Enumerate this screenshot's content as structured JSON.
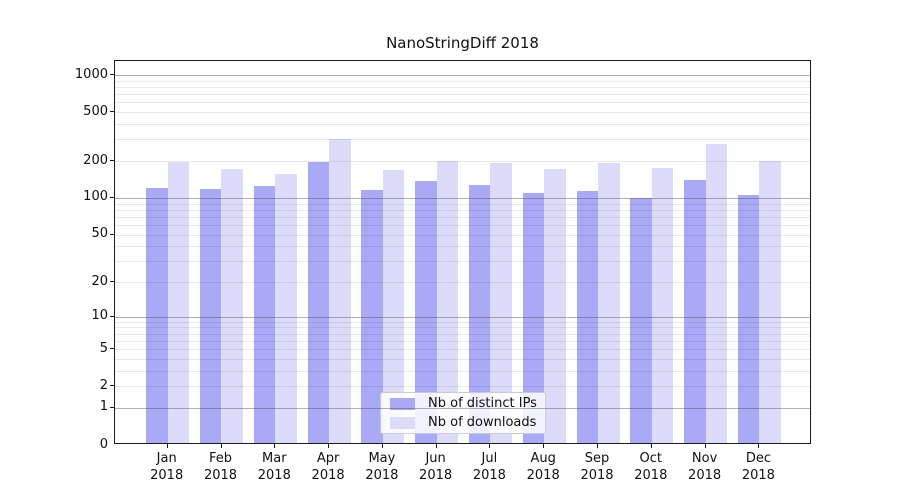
{
  "chart_data": {
    "type": "bar",
    "title": "NanoStringDiff 2018",
    "x_months": [
      "Jan",
      "Feb",
      "Mar",
      "Apr",
      "May",
      "Jun",
      "Jul",
      "Aug",
      "Sep",
      "Oct",
      "Nov",
      "Dec"
    ],
    "x_year": "2018",
    "categories": [
      "Jan 2018",
      "Feb 2018",
      "Mar 2018",
      "Apr 2018",
      "May 2018",
      "Jun 2018",
      "Jul 2018",
      "Aug 2018",
      "Sep 2018",
      "Oct 2018",
      "Nov 2018",
      "Dec 2018"
    ],
    "series": [
      {
        "name": "Nb of distinct IPs",
        "color": "#a9a9f6",
        "values": [
          117,
          115,
          120,
          188,
          112,
          133,
          123,
          106,
          109,
          96,
          135,
          101
        ]
      },
      {
        "name": "Nb of downloads",
        "color": "#dcdcfa",
        "values": [
          190,
          165,
          150,
          290,
          163,
          193,
          185,
          166,
          187,
          170,
          263,
          193
        ]
      }
    ],
    "y_axis": {
      "scale": "log1p",
      "tick_values": [
        0,
        1,
        2,
        5,
        10,
        20,
        50,
        100,
        200,
        500,
        1000
      ],
      "tick_labels": [
        "0",
        "1",
        "2",
        "5",
        "10",
        "20",
        "50",
        "100",
        "200",
        "500",
        "1000"
      ],
      "ylim": [
        0,
        1300
      ]
    },
    "grid": {
      "major_values": [
        1,
        10,
        100,
        1000
      ],
      "minor_values": [
        2,
        3,
        4,
        5,
        6,
        7,
        8,
        9,
        20,
        30,
        40,
        50,
        60,
        70,
        80,
        90,
        200,
        300,
        400,
        500,
        600,
        700,
        800,
        900
      ],
      "major_color": "#aaaaaa",
      "minor_color": "#e9e9e9",
      "shown": true
    },
    "legend": {
      "position": "bottom-center"
    }
  }
}
